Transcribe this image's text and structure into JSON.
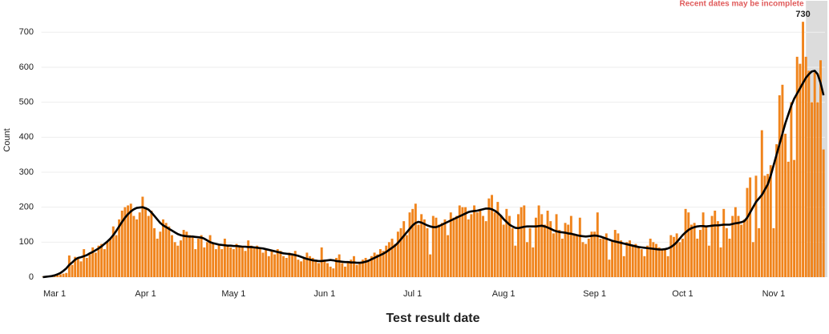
{
  "chart_data": {
    "type": "bar",
    "x_label": "Test result date",
    "y_label": "Count",
    "annotation": "Recent dates may be incomplete",
    "annotation_color": "#e05a5a",
    "shade_color": "#dcdcdc",
    "ylim": [
      0,
      790
    ],
    "yticks": [
      0,
      100,
      200,
      300,
      400,
      500,
      600,
      700
    ],
    "grid": true,
    "categories": [
      null,
      null,
      null,
      null,
      "Mar 1",
      null,
      null,
      null,
      null,
      null,
      null,
      null,
      null,
      null,
      null,
      null,
      null,
      null,
      null,
      null,
      null,
      null,
      null,
      null,
      null,
      null,
      null,
      null,
      null,
      null,
      null,
      null,
      null,
      null,
      null,
      "Apr 1",
      null,
      null,
      null,
      null,
      null,
      null,
      null,
      null,
      null,
      null,
      null,
      null,
      null,
      null,
      null,
      null,
      null,
      null,
      null,
      null,
      null,
      null,
      null,
      null,
      null,
      null,
      null,
      null,
      null,
      "May 1",
      null,
      null,
      null,
      null,
      null,
      null,
      null,
      null,
      null,
      null,
      null,
      null,
      null,
      null,
      null,
      null,
      null,
      null,
      null,
      null,
      null,
      null,
      null,
      null,
      null,
      null,
      null,
      null,
      null,
      null,
      "Jun 1",
      null,
      null,
      null,
      null,
      null,
      null,
      null,
      null,
      null,
      null,
      null,
      null,
      null,
      null,
      null,
      null,
      null,
      null,
      null,
      null,
      null,
      null,
      null,
      null,
      null,
      null,
      null,
      null,
      null,
      "Jul 1",
      null,
      null,
      null,
      null,
      null,
      null,
      null,
      null,
      null,
      null,
      null,
      null,
      null,
      null,
      null,
      null,
      null,
      null,
      null,
      null,
      null,
      null,
      null,
      null,
      null,
      null,
      null,
      null,
      null,
      null,
      "Aug 1",
      null,
      null,
      null,
      null,
      null,
      null,
      null,
      null,
      null,
      null,
      null,
      null,
      null,
      null,
      null,
      null,
      null,
      null,
      null,
      null,
      null,
      null,
      null,
      null,
      null,
      null,
      null,
      null,
      null,
      null,
      "Sep 1",
      null,
      null,
      null,
      null,
      null,
      null,
      null,
      null,
      null,
      null,
      null,
      null,
      null,
      null,
      null,
      null,
      null,
      null,
      null,
      null,
      null,
      null,
      null,
      null,
      null,
      null,
      null,
      null,
      null,
      "Oct 1",
      null,
      null,
      null,
      null,
      null,
      null,
      null,
      null,
      null,
      null,
      null,
      null,
      null,
      null,
      null,
      null,
      null,
      null,
      null,
      null,
      null,
      null,
      null,
      null,
      null,
      null,
      null,
      null,
      null,
      null,
      "Nov 1",
      null,
      null,
      null,
      null,
      null,
      null,
      null,
      null,
      null,
      null,
      null,
      null,
      null,
      null,
      null,
      null,
      null
    ],
    "series": [
      {
        "color": "#f0841c",
        "values": [
          1,
          2,
          3,
          4,
          5,
          6,
          8,
          10,
          12,
          62,
          35,
          58,
          55,
          45,
          80,
          55,
          65,
          85,
          70,
          90,
          95,
          80,
          100,
          110,
          145,
          120,
          165,
          190,
          200,
          205,
          210,
          175,
          165,
          185,
          230,
          200,
          175,
          190,
          140,
          110,
          130,
          165,
          155,
          145,
          120,
          100,
          90,
          105,
          135,
          130,
          120,
          115,
          80,
          110,
          120,
          85,
          100,
          120,
          95,
          80,
          95,
          80,
          110,
          90,
          85,
          80,
          95,
          90,
          85,
          75,
          105,
          90,
          85,
          90,
          85,
          70,
          80,
          60,
          75,
          65,
          80,
          75,
          60,
          55,
          70,
          65,
          75,
          50,
          45,
          55,
          70,
          60,
          55,
          50,
          40,
          85,
          50,
          40,
          30,
          25,
          55,
          65,
          40,
          30,
          45,
          50,
          60,
          35,
          40,
          50,
          55,
          45,
          60,
          70,
          65,
          80,
          75,
          90,
          100,
          110,
          95,
          130,
          140,
          160,
          120,
          185,
          195,
          210,
          150,
          180,
          165,
          140,
          65,
          175,
          170,
          150,
          155,
          165,
          120,
          185,
          170,
          175,
          205,
          200,
          200,
          165,
          180,
          205,
          185,
          195,
          175,
          160,
          225,
          235,
          185,
          215,
          175,
          150,
          195,
          175,
          140,
          90,
          180,
          200,
          205,
          100,
          140,
          85,
          170,
          205,
          180,
          150,
          190,
          160,
          125,
          180,
          135,
          110,
          155,
          150,
          175,
          125,
          120,
          170,
          100,
          95,
          110,
          130,
          130,
          185,
          110,
          115,
          125,
          50,
          105,
          135,
          125,
          105,
          60,
          100,
          105,
          90,
          95,
          85,
          80,
          60,
          90,
          110,
          100,
          95,
          85,
          80,
          80,
          60,
          120,
          115,
          125,
          100,
          110,
          195,
          185,
          150,
          155,
          110,
          135,
          185,
          145,
          90,
          175,
          190,
          160,
          85,
          195,
          140,
          110,
          175,
          200,
          175,
          150,
          165,
          255,
          285,
          100,
          290,
          140,
          420,
          290,
          295,
          320,
          140,
          380,
          520,
          550,
          410,
          330,
          500,
          335,
          630,
          610,
          730,
          630,
          590,
          500,
          585,
          500,
          620,
          365
        ]
      },
      {
        "color": "#000000",
        "type": "line",
        "values": [
          0,
          1,
          2,
          3,
          5,
          8,
          12,
          18,
          25,
          35,
          42,
          50,
          55,
          57,
          60,
          63,
          68,
          72,
          77,
          82,
          88,
          95,
          102,
          110,
          120,
          132,
          145,
          158,
          170,
          180,
          188,
          194,
          198,
          199,
          200,
          197,
          193,
          185,
          175,
          165,
          155,
          148,
          143,
          138,
          133,
          128,
          123,
          120,
          118,
          117,
          116,
          116,
          115,
          114,
          113,
          110,
          105,
          100,
          97,
          95,
          93,
          92,
          91,
          90,
          90,
          89,
          89,
          88,
          87,
          87,
          86,
          86,
          85,
          84,
          83,
          82,
          80,
          78,
          76,
          74,
          72,
          70,
          68,
          67,
          66,
          65,
          63,
          61,
          58,
          55,
          52,
          50,
          48,
          47,
          46,
          46,
          47,
          48,
          49,
          48,
          46,
          45,
          44,
          43,
          43,
          42,
          42,
          41,
          41,
          42,
          44,
          47,
          51,
          55,
          59,
          63,
          67,
          72,
          78,
          84,
          90,
          98,
          108,
          118,
          128,
          138,
          148,
          155,
          158,
          156,
          152,
          148,
          145,
          143,
          143,
          146,
          150,
          154,
          158,
          162,
          166,
          170,
          174,
          178,
          182,
          186,
          188,
          189,
          190,
          192,
          194,
          196,
          196,
          194,
          190,
          184,
          176,
          166,
          158,
          150,
          145,
          141,
          140,
          142,
          144,
          145,
          145,
          145,
          145,
          146,
          147,
          145,
          142,
          138,
          134,
          131,
          129,
          128,
          127,
          125,
          124,
          122,
          120,
          118,
          117,
          116,
          117,
          118,
          119,
          118,
          116,
          113,
          110,
          107,
          104,
          102,
          100,
          98,
          96,
          94,
          92,
          90,
          88,
          86,
          85,
          84,
          83,
          82,
          81,
          80,
          79,
          79,
          80,
          82,
          86,
          92,
          100,
          110,
          120,
          128,
          135,
          140,
          143,
          145,
          146,
          146,
          145,
          146,
          147,
          148,
          148,
          149,
          150,
          150,
          150,
          152,
          154,
          155,
          157,
          160,
          170,
          185,
          200,
          215,
          225,
          235,
          250,
          265,
          290,
          320,
          350,
          380,
          410,
          440,
          465,
          490,
          510,
          525,
          540,
          555,
          570,
          580,
          588,
          590,
          580,
          555,
          520
        ]
      }
    ]
  }
}
